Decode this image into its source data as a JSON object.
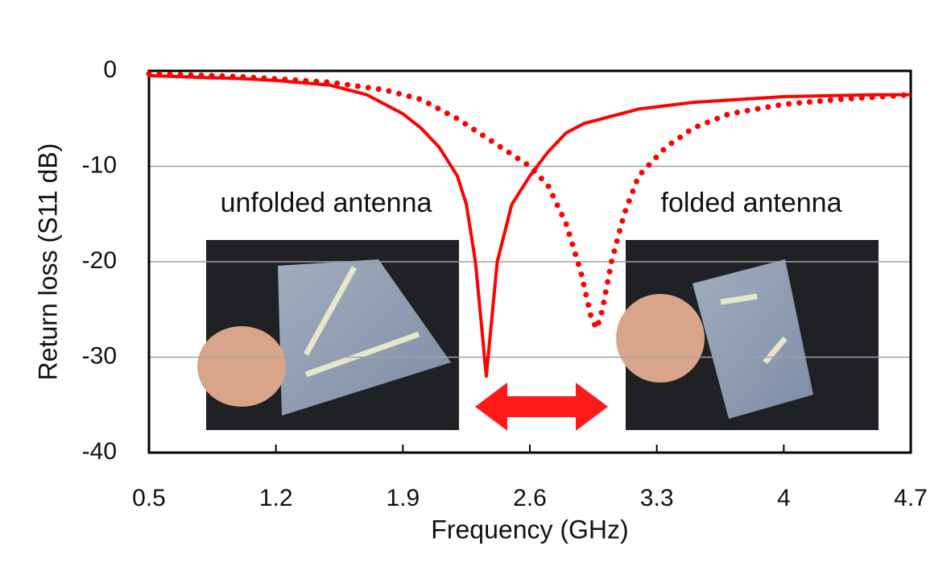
{
  "chart_data": {
    "type": "line",
    "x_label": "Frequency (GHz)",
    "y_label": "Return loss (S11 dB)",
    "xlim": [
      0.5,
      4.7
    ],
    "xticks": [
      0.5,
      1.2,
      1.9,
      2.6,
      3.3,
      4,
      4.7
    ],
    "ylim": [
      -40,
      0
    ],
    "yticks": [
      0,
      -10,
      -20,
      -30,
      -40
    ],
    "grid": true,
    "series": [
      {
        "name": "unfolded antenna",
        "color": "#ff0000",
        "style": "solid",
        "x": [
          0.5,
          0.8,
          1.0,
          1.2,
          1.5,
          1.7,
          1.9,
          2.0,
          2.1,
          2.2,
          2.25,
          2.3,
          2.33,
          2.36,
          2.39,
          2.42,
          2.5,
          2.6,
          2.7,
          2.8,
          2.9,
          3.0,
          3.2,
          3.5,
          4.0,
          4.5,
          4.7
        ],
        "values": [
          -0.5,
          -0.7,
          -0.8,
          -1.0,
          -1.5,
          -2.5,
          -4.5,
          -6,
          -8,
          -11,
          -14,
          -20,
          -26,
          -32,
          -26,
          -20,
          -14,
          -11,
          -8.5,
          -6.5,
          -5.5,
          -5,
          -4,
          -3.3,
          -2.7,
          -2.5,
          -2.5
        ]
      },
      {
        "name": "folded antenna",
        "color": "#ff0000",
        "style": "dotted",
        "x": [
          0.5,
          1.0,
          1.5,
          1.8,
          2.0,
          2.2,
          2.4,
          2.6,
          2.7,
          2.8,
          2.88,
          2.94,
          2.97,
          3.0,
          3.05,
          3.12,
          3.2,
          3.35,
          3.5,
          3.7,
          4.0,
          4.3,
          4.7
        ],
        "values": [
          -0.3,
          -0.6,
          -1.2,
          -2,
          -3,
          -5,
          -7.5,
          -10,
          -12,
          -16,
          -21,
          -26,
          -27,
          -25,
          -20,
          -15,
          -11,
          -8,
          -6,
          -4.5,
          -3.5,
          -3,
          -2.5
        ]
      }
    ]
  }
}
